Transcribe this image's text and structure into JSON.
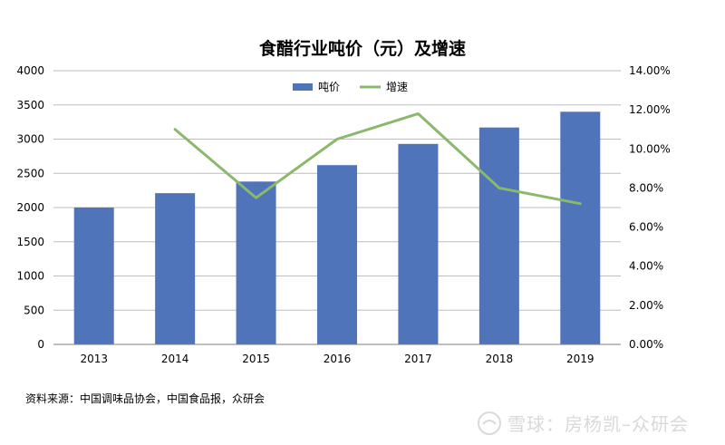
{
  "chart_data": {
    "type": "bar",
    "title": "食醋行业吨价（元）及增速",
    "categories": [
      "2013",
      "2014",
      "2015",
      "2016",
      "2017",
      "2018",
      "2019"
    ],
    "series": [
      {
        "name": "吨价",
        "chart_type": "bar",
        "axis": "left",
        "color": "#4f74ba",
        "values": [
          2000,
          2210,
          2380,
          2620,
          2930,
          3170,
          3400
        ]
      },
      {
        "name": "增速",
        "chart_type": "line",
        "axis": "right",
        "color": "#8ab96b",
        "values": [
          null,
          0.11,
          0.075,
          0.105,
          0.118,
          0.08,
          0.072
        ]
      }
    ],
    "y_left": {
      "ylim": [
        0,
        4000
      ],
      "ticks": [
        "4000",
        "3500",
        "3000",
        "2500",
        "2000",
        "1500",
        "1000",
        "500",
        "0"
      ]
    },
    "y_right": {
      "ylim": [
        0,
        0.14
      ],
      "ticks": [
        "14.00%",
        "12.00%",
        "10.00%",
        "8.00%",
        "6.00%",
        "4.00%",
        "2.00%",
        "0.00%"
      ]
    },
    "grid": true,
    "legend_position": "top-center"
  },
  "footer": {
    "source": "资料来源：中国调味品协会，中国食品报，众研会"
  },
  "watermark": {
    "text": "雪球：房杨凯–众研会"
  }
}
